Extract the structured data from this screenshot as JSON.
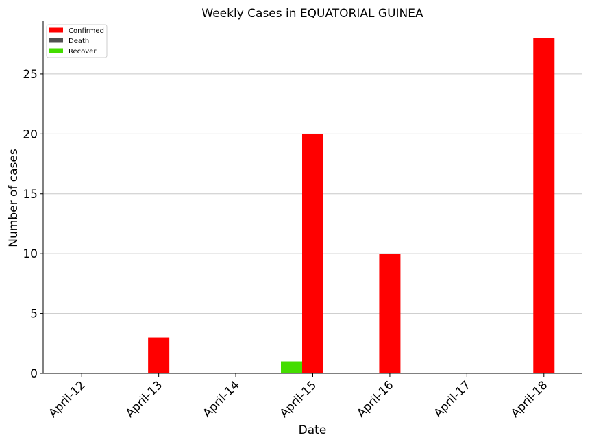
{
  "chart_data": {
    "type": "bar",
    "title": "Weekly Cases in EQUATORIAL GUINEA",
    "xlabel": "Date",
    "ylabel": "Number of cases",
    "categories": [
      "April-12",
      "April-13",
      "April-14",
      "April-15",
      "April-16",
      "April-17",
      "April-18"
    ],
    "series": [
      {
        "name": "Confirmed",
        "color": "#ff0000",
        "values": [
          0,
          3,
          0,
          20,
          10,
          0,
          28
        ]
      },
      {
        "name": "Death",
        "color": "#505050",
        "values": [
          0,
          0,
          0,
          0,
          0,
          0,
          0
        ]
      },
      {
        "name": "Recover",
        "color": "#44dd00",
        "values": [
          0,
          0,
          0,
          1,
          0,
          0,
          0
        ]
      }
    ],
    "ylim": [
      0,
      29.4
    ],
    "yticks": [
      0,
      5,
      10,
      15,
      20,
      25
    ],
    "grid": "horizontal",
    "legend": "top-left"
  }
}
